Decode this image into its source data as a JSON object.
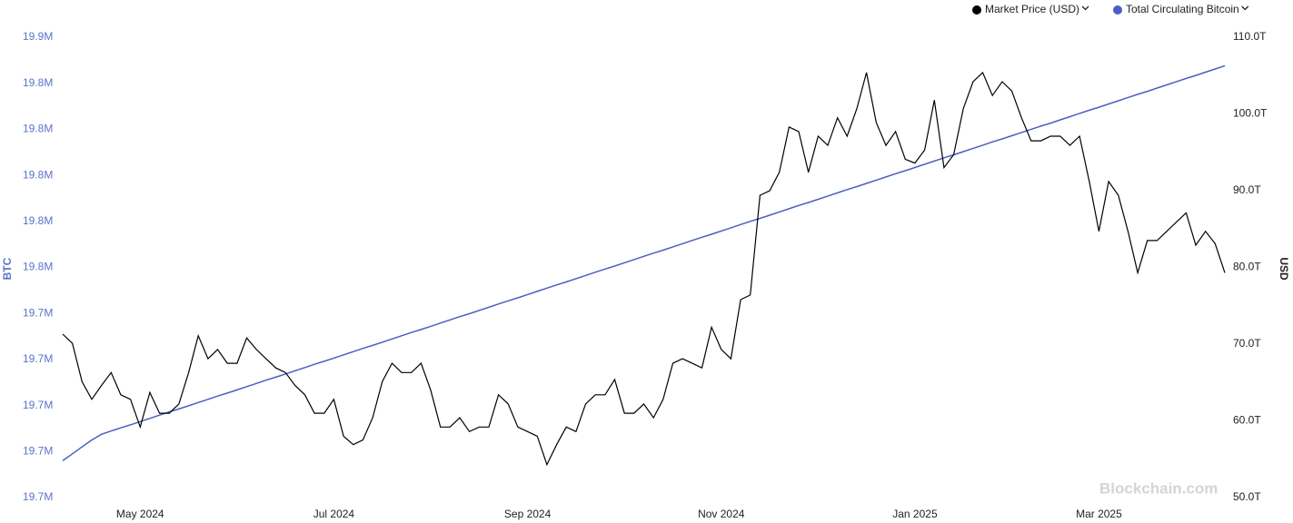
{
  "chart_data": {
    "type": "line",
    "y_label": "BTC",
    "y2_label": "USD",
    "watermark": "Blockchain.com",
    "categories": [
      null,
      null,
      null,
      null,
      null,
      null,
      null,
      null,
      "May 2024",
      null,
      null,
      null,
      null,
      null,
      null,
      null,
      null,
      null,
      null,
      null,
      null,
      null,
      null,
      null,
      null,
      null,
      null,
      null,
      "Jul 2024",
      null,
      null,
      null,
      null,
      null,
      null,
      null,
      null,
      null,
      null,
      null,
      null,
      null,
      null,
      null,
      null,
      null,
      null,
      null,
      "Sep 2024",
      null,
      null,
      null,
      null,
      null,
      null,
      null,
      null,
      null,
      null,
      null,
      null,
      null,
      null,
      null,
      null,
      null,
      null,
      null,
      "Nov 2024",
      null,
      null,
      null,
      null,
      null,
      null,
      null,
      null,
      null,
      null,
      null,
      null,
      null,
      null,
      null,
      null,
      null,
      null,
      null,
      "Jan 2025",
      null,
      null,
      null,
      null,
      null,
      null,
      null,
      null,
      null,
      null,
      null,
      null,
      null,
      null,
      null,
      null,
      null,
      null,
      "Mar 2025",
      null,
      null,
      null,
      null,
      null,
      null,
      null,
      null,
      null,
      null,
      null,
      null,
      null
    ],
    "series": [
      {
        "name": "Market Price (USD)",
        "color": "#000000",
        "axis": "y2",
        "values": [
          71.3,
          70.1,
          65.1,
          62.8,
          64.6,
          66.3,
          63.4,
          62.8,
          59.2,
          63.7,
          61.0,
          61.0,
          62.2,
          66.3,
          71.1,
          68.1,
          69.3,
          67.5,
          67.5,
          70.8,
          69.3,
          68.1,
          66.9,
          66.3,
          64.6,
          63.4,
          61.0,
          61.0,
          62.8,
          58.0,
          56.9,
          57.5,
          60.4,
          65.1,
          67.5,
          66.3,
          66.3,
          67.5,
          64.0,
          59.2,
          59.2,
          60.4,
          58.6,
          59.2,
          59.2,
          63.4,
          62.2,
          59.2,
          58.6,
          58.0,
          54.3,
          56.9,
          59.2,
          58.6,
          62.2,
          63.4,
          63.4,
          65.4,
          61.0,
          61.0,
          62.2,
          60.4,
          62.8,
          67.5,
          68.1,
          67.5,
          66.9,
          72.2,
          69.3,
          68.1,
          75.8,
          76.4,
          89.4,
          90.0,
          92.4,
          98.3,
          97.7,
          92.4,
          97.1,
          95.9,
          99.5,
          97.1,
          100.7,
          105.4,
          98.9,
          95.9,
          97.7,
          94.1,
          93.6,
          95.3,
          101.8,
          93.0,
          94.7,
          100.7,
          104.2,
          105.4,
          102.4,
          104.2,
          103.0,
          99.5,
          96.5,
          96.5,
          97.1,
          97.1,
          95.9,
          97.1,
          91.2,
          84.7,
          91.2,
          89.4,
          84.7,
          79.3,
          83.5,
          83.5,
          84.7,
          85.9,
          87.1,
          82.9,
          84.7,
          83.1,
          79.3
        ]
      },
      {
        "name": "Total Circulating Bitcoin",
        "color": "#4a5fc1",
        "axis": "y",
        "values": [
          19.676,
          19.679,
          19.682,
          19.685,
          19.6875,
          19.6889,
          19.6903,
          19.6916,
          19.693,
          19.6944,
          19.6958,
          19.6972,
          19.6985,
          19.6999,
          19.7013,
          19.7027,
          19.7041,
          19.7054,
          19.7068,
          19.7082,
          19.7096,
          19.711,
          19.7123,
          19.7137,
          19.7151,
          19.7165,
          19.7179,
          19.7192,
          19.7206,
          19.722,
          19.7234,
          19.7248,
          19.7261,
          19.7275,
          19.7289,
          19.7303,
          19.7317,
          19.733,
          19.7344,
          19.7358,
          19.7372,
          19.7386,
          19.7399,
          19.7413,
          19.7427,
          19.7441,
          19.7455,
          19.7468,
          19.7482,
          19.7496,
          19.751,
          19.7524,
          19.7537,
          19.7551,
          19.7565,
          19.7579,
          19.7593,
          19.7606,
          19.762,
          19.7634,
          19.7648,
          19.7662,
          19.7675,
          19.7689,
          19.7703,
          19.7717,
          19.7731,
          19.7744,
          19.7758,
          19.7772,
          19.7786,
          19.78,
          19.7813,
          19.7827,
          19.7841,
          19.7855,
          19.7869,
          19.7882,
          19.7896,
          19.791,
          19.7924,
          19.7938,
          19.7951,
          19.7965,
          19.7979,
          19.7993,
          19.8007,
          19.802,
          19.8034,
          19.8048,
          19.8062,
          19.8076,
          19.8089,
          19.8103,
          19.8117,
          19.8131,
          19.8145,
          19.8158,
          19.8172,
          19.8186,
          19.82,
          19.8214,
          19.8227,
          19.8241,
          19.8255,
          19.8269,
          19.8283,
          19.8296,
          19.831,
          19.8324,
          19.8338,
          19.8352,
          19.8365,
          19.8379,
          19.8393,
          19.8407,
          19.8421,
          19.8434,
          19.8448,
          19.8462,
          19.8476
        ]
      }
    ],
    "ylim": [
      19.66,
      19.86
    ],
    "yticks": [
      {
        "value": 19.66,
        "label": "19.7M"
      },
      {
        "value": 19.68,
        "label": "19.7M"
      },
      {
        "value": 19.7,
        "label": "19.7M"
      },
      {
        "value": 19.72,
        "label": "19.7M"
      },
      {
        "value": 19.74,
        "label": "19.7M"
      },
      {
        "value": 19.76,
        "label": "19.8M"
      },
      {
        "value": 19.78,
        "label": "19.8M"
      },
      {
        "value": 19.8,
        "label": "19.8M"
      },
      {
        "value": 19.82,
        "label": "19.8M"
      },
      {
        "value": 19.84,
        "label": "19.8M"
      },
      {
        "value": 19.86,
        "label": "19.9M"
      }
    ],
    "y2lim": [
      50,
      110
    ],
    "y2ticks": [
      {
        "value": 50,
        "label": "50.0T"
      },
      {
        "value": 60,
        "label": "60.0T"
      },
      {
        "value": 70,
        "label": "70.0T"
      },
      {
        "value": 80,
        "label": "80.0T"
      },
      {
        "value": 90,
        "label": "90.0T"
      },
      {
        "value": 100,
        "label": "100.0T"
      },
      {
        "value": 110,
        "label": "110.0T"
      }
    ],
    "grid": false,
    "legend": "top-right"
  }
}
